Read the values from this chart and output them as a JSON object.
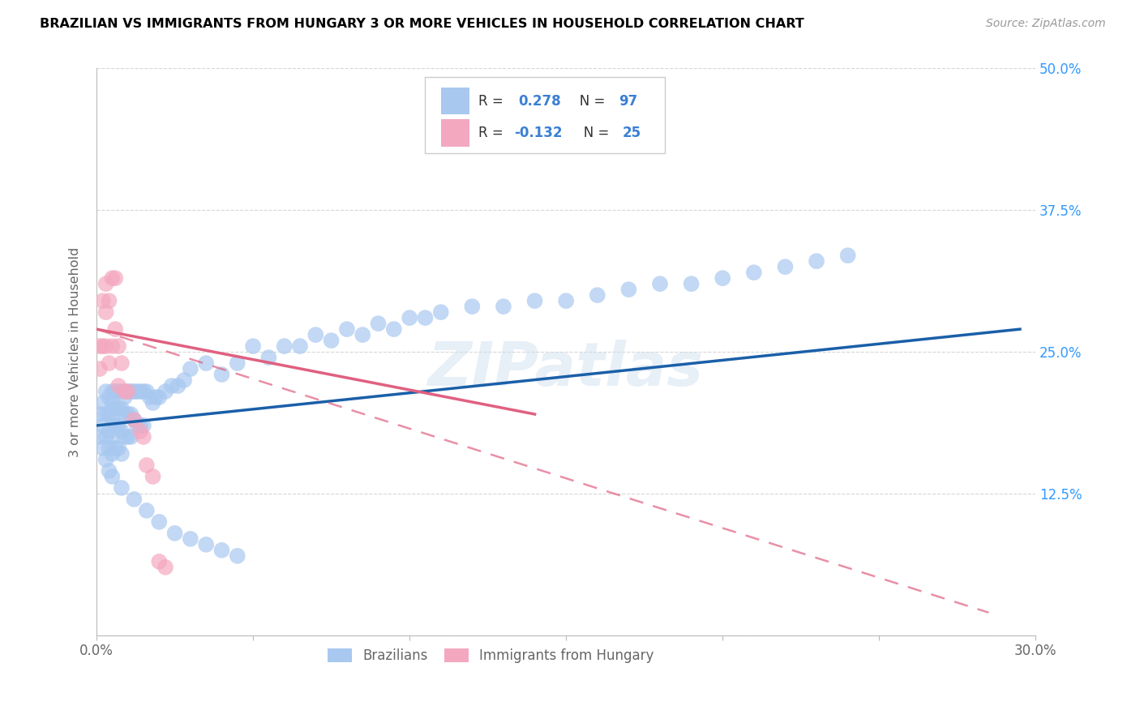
{
  "title": "BRAZILIAN VS IMMIGRANTS FROM HUNGARY 3 OR MORE VEHICLES IN HOUSEHOLD CORRELATION CHART",
  "source": "Source: ZipAtlas.com",
  "ylabel": "3 or more Vehicles in Household",
  "xlim": [
    0.0,
    0.3
  ],
  "ylim": [
    0.0,
    0.5
  ],
  "xticks": [
    0.0,
    0.05,
    0.1,
    0.15,
    0.2,
    0.25,
    0.3
  ],
  "yticks": [
    0.0,
    0.125,
    0.25,
    0.375,
    0.5
  ],
  "right_yticklabels": [
    "",
    "12.5%",
    "25.0%",
    "37.5%",
    "50.0%"
  ],
  "blue_color": "#a8c8f0",
  "pink_color": "#f4a8c0",
  "blue_line_color": "#1a5fa8",
  "pink_line_color": "#e06080",
  "watermark": "ZIPatlas",
  "legend_label_blue": "Brazilians",
  "legend_label_pink": "Immigrants from Hungary",
  "blue_scatter_x": [
    0.001,
    0.001,
    0.002,
    0.002,
    0.002,
    0.003,
    0.003,
    0.003,
    0.003,
    0.004,
    0.004,
    0.004,
    0.004,
    0.004,
    0.005,
    0.005,
    0.005,
    0.005,
    0.005,
    0.005,
    0.006,
    0.006,
    0.006,
    0.006,
    0.007,
    0.007,
    0.007,
    0.007,
    0.008,
    0.008,
    0.008,
    0.008,
    0.009,
    0.009,
    0.009,
    0.01,
    0.01,
    0.01,
    0.011,
    0.011,
    0.011,
    0.012,
    0.012,
    0.013,
    0.013,
    0.014,
    0.014,
    0.015,
    0.015,
    0.016,
    0.017,
    0.018,
    0.019,
    0.02,
    0.022,
    0.024,
    0.026,
    0.028,
    0.03,
    0.035,
    0.04,
    0.045,
    0.05,
    0.055,
    0.06,
    0.065,
    0.07,
    0.075,
    0.08,
    0.085,
    0.09,
    0.095,
    0.1,
    0.105,
    0.11,
    0.12,
    0.13,
    0.14,
    0.15,
    0.16,
    0.17,
    0.18,
    0.19,
    0.2,
    0.21,
    0.22,
    0.23,
    0.24,
    0.008,
    0.012,
    0.016,
    0.02,
    0.025,
    0.03,
    0.035,
    0.04,
    0.045
  ],
  "blue_scatter_y": [
    0.195,
    0.175,
    0.205,
    0.185,
    0.165,
    0.215,
    0.195,
    0.175,
    0.155,
    0.21,
    0.195,
    0.18,
    0.165,
    0.145,
    0.215,
    0.205,
    0.19,
    0.175,
    0.16,
    0.14,
    0.215,
    0.2,
    0.185,
    0.165,
    0.215,
    0.2,
    0.185,
    0.165,
    0.215,
    0.2,
    0.18,
    0.16,
    0.21,
    0.195,
    0.175,
    0.215,
    0.195,
    0.175,
    0.215,
    0.195,
    0.175,
    0.215,
    0.19,
    0.215,
    0.185,
    0.215,
    0.185,
    0.215,
    0.185,
    0.215,
    0.21,
    0.205,
    0.21,
    0.21,
    0.215,
    0.22,
    0.22,
    0.225,
    0.235,
    0.24,
    0.23,
    0.24,
    0.255,
    0.245,
    0.255,
    0.255,
    0.265,
    0.26,
    0.27,
    0.265,
    0.275,
    0.27,
    0.28,
    0.28,
    0.285,
    0.29,
    0.29,
    0.295,
    0.295,
    0.3,
    0.305,
    0.31,
    0.31,
    0.315,
    0.32,
    0.325,
    0.33,
    0.335,
    0.13,
    0.12,
    0.11,
    0.1,
    0.09,
    0.085,
    0.08,
    0.075,
    0.07
  ],
  "pink_scatter_x": [
    0.001,
    0.001,
    0.002,
    0.002,
    0.003,
    0.003,
    0.003,
    0.004,
    0.004,
    0.005,
    0.005,
    0.006,
    0.006,
    0.007,
    0.007,
    0.008,
    0.009,
    0.01,
    0.012,
    0.014,
    0.015,
    0.016,
    0.018,
    0.02,
    0.022
  ],
  "pink_scatter_y": [
    0.255,
    0.235,
    0.295,
    0.255,
    0.31,
    0.285,
    0.255,
    0.295,
    0.24,
    0.315,
    0.255,
    0.315,
    0.27,
    0.255,
    0.22,
    0.24,
    0.215,
    0.215,
    0.19,
    0.18,
    0.175,
    0.15,
    0.14,
    0.065,
    0.06
  ],
  "blue_trend_x": [
    0.0,
    0.295
  ],
  "blue_trend_y": [
    0.185,
    0.27
  ],
  "pink_trend_x": [
    0.0,
    0.285
  ],
  "pink_trend_y": [
    0.27,
    0.02
  ]
}
